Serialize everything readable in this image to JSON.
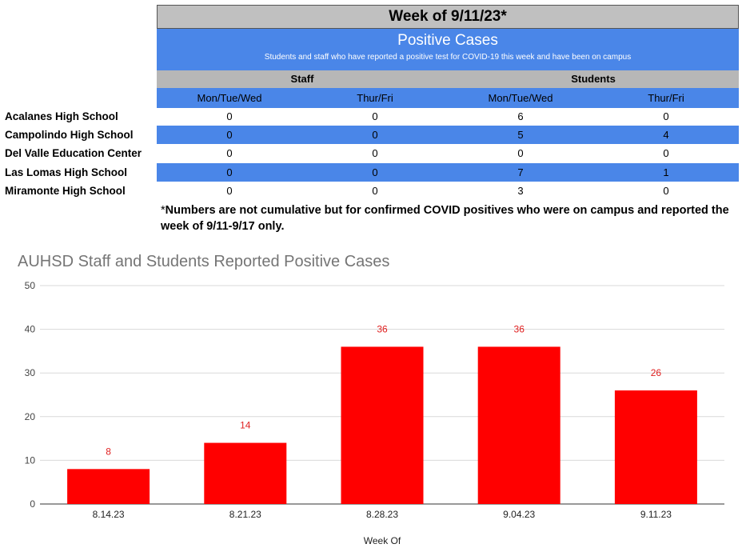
{
  "table": {
    "week_title": "Week of 9/11/23*",
    "section_title": "Positive Cases",
    "section_subtitle": "Students and staff who have reported a positive test for COVID-19 this week and have been on campus",
    "groups": [
      "Staff",
      "Students"
    ],
    "subheaders": [
      "Mon/Tue/Wed",
      "Thur/Fri",
      "Mon/Tue/Wed",
      "Thur/Fri"
    ],
    "rows": [
      {
        "school": "Acalanes High School",
        "values": [
          "0",
          "0",
          "6",
          "0"
        ]
      },
      {
        "school": "Campolindo High School",
        "values": [
          "0",
          "0",
          "5",
          "4"
        ]
      },
      {
        "school": "Del Valle Education Center",
        "values": [
          "0",
          "0",
          "0",
          "0"
        ]
      },
      {
        "school": "Las Lomas High School",
        "values": [
          "0",
          "0",
          "7",
          "1"
        ]
      },
      {
        "school": "Miramonte High School",
        "values": [
          "0",
          "0",
          "3",
          "0"
        ]
      }
    ],
    "note_star": "*",
    "note": "Numbers are not cumulative but for confirmed COVID positives who were on campus and reported the week of 9/11-9/17 only."
  },
  "colors": {
    "header_gray": "#c0c0c0",
    "blue": "#4a86e8",
    "group_gray": "#b7b7b7",
    "bar": "#ff0000",
    "label": "#e02020"
  },
  "chart_data": {
    "type": "bar",
    "title": "AUHSD Staff and Students Reported Positive Cases",
    "xlabel": "Week Of",
    "ylabel": "",
    "categories": [
      "8.14.23",
      "8.21.23",
      "8.28.23",
      "9.04.23",
      "9.11.23"
    ],
    "values": [
      8,
      14,
      36,
      36,
      26
    ],
    "ylim": [
      0,
      50
    ],
    "yticks": [
      0,
      10,
      20,
      30,
      40,
      50
    ],
    "grid": true,
    "legend": "none"
  }
}
